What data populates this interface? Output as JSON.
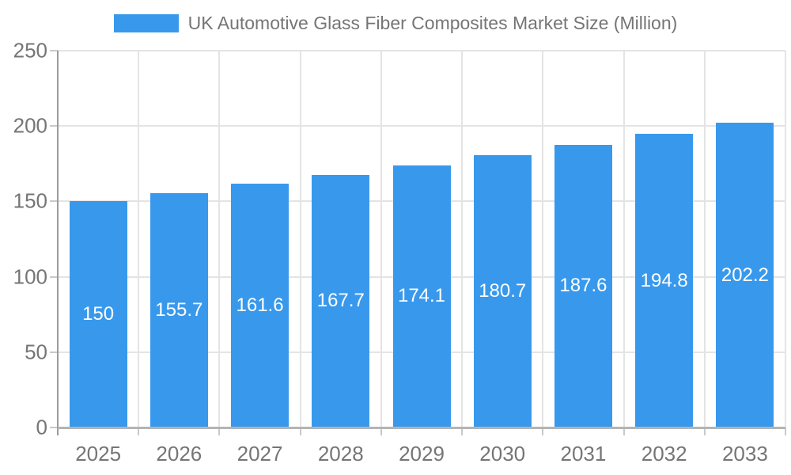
{
  "legend": {
    "label": "UK Automotive Glass Fiber Composites Market Size (Million)"
  },
  "chart_data": {
    "type": "bar",
    "title": "UK Automotive Glass Fiber Composites Market Size (Million)",
    "categories": [
      "2025",
      "2026",
      "2027",
      "2028",
      "2029",
      "2030",
      "2031",
      "2032",
      "2033"
    ],
    "values": [
      150,
      155.7,
      161.6,
      167.7,
      174.1,
      180.7,
      187.6,
      194.8,
      202.2
    ],
    "xlabel": "",
    "ylabel": "",
    "ylim": [
      0,
      250
    ],
    "yticks": [
      0,
      50,
      100,
      150,
      200,
      250
    ],
    "grid": true,
    "legend_position": "top",
    "value_labels_inside_bars": true,
    "colors": {
      "bar": "#3899EC",
      "grid": "#E4E4E4",
      "axis_y": "#9B9B9B",
      "axis_x": "#B4B4B4",
      "tick": "#C9C9C9",
      "tick_label": "#757575",
      "value_label": "#FFFFFF",
      "background": "#FFFFFF"
    }
  }
}
